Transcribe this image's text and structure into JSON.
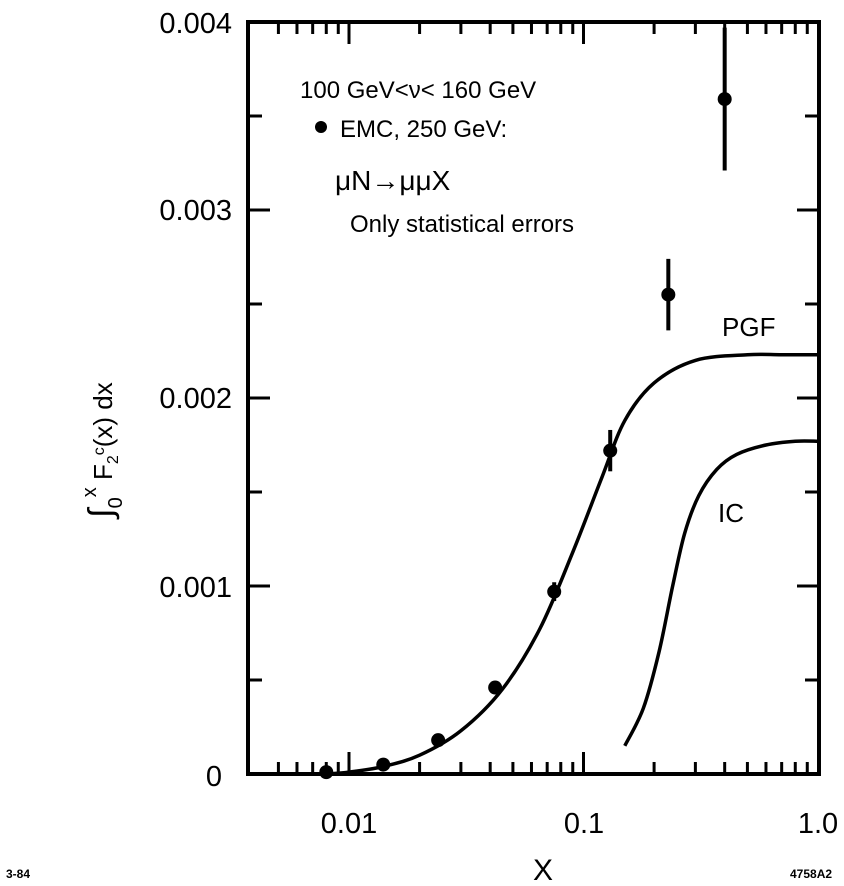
{
  "chart_data": {
    "type": "scatter",
    "title": "",
    "xlabel": "X",
    "ylabel": "∫₀ˣ F₂ᶜ(x) dx",
    "x_scale": "log",
    "xlim": [
      0.005,
      1.0
    ],
    "ylim": [
      0,
      0.004
    ],
    "x_tick_labels": [
      "0.01",
      "0.1",
      "1.0"
    ],
    "y_tick_labels": [
      "0",
      "0.001",
      "0.002",
      "0.003",
      "0.004"
    ],
    "grid": false,
    "annotations": {
      "line1": "100 GeV<ν< 160 GeV",
      "line2": "EMC, 250 GeV:",
      "line3": "μN→μμX",
      "line4": "Only statistical errors"
    },
    "series": [
      {
        "name": "EMC, 250 GeV",
        "style": "points-with-errors",
        "points": [
          {
            "x": 0.008,
            "y": 1e-05,
            "err": 0
          },
          {
            "x": 0.014,
            "y": 5e-05,
            "err": 0
          },
          {
            "x": 0.024,
            "y": 0.00018,
            "err": 0
          },
          {
            "x": 0.042,
            "y": 0.00046,
            "err": 3e-05
          },
          {
            "x": 0.075,
            "y": 0.00097,
            "err": 5e-05
          },
          {
            "x": 0.13,
            "y": 0.00172,
            "err": 0.00011
          },
          {
            "x": 0.23,
            "y": 0.00255,
            "err": 0.00019
          },
          {
            "x": 0.4,
            "y": 0.00359,
            "err": 0.00038
          }
        ]
      },
      {
        "name": "PGF",
        "style": "line",
        "points": [
          [
            0.008,
            0.0
          ],
          [
            0.01,
            1e-05
          ],
          [
            0.014,
            4e-05
          ],
          [
            0.02,
            0.0001
          ],
          [
            0.03,
            0.00023
          ],
          [
            0.045,
            0.00045
          ],
          [
            0.065,
            0.00077
          ],
          [
            0.09,
            0.00118
          ],
          [
            0.12,
            0.00158
          ],
          [
            0.15,
            0.00188
          ],
          [
            0.2,
            0.00208
          ],
          [
            0.3,
            0.0022
          ],
          [
            0.5,
            0.00223
          ],
          [
            0.7,
            0.00223
          ],
          [
            1.0,
            0.00223
          ]
        ]
      },
      {
        "name": "IC",
        "style": "line",
        "points": [
          [
            0.15,
            0.00015
          ],
          [
            0.18,
            0.00035
          ],
          [
            0.21,
            0.00065
          ],
          [
            0.24,
            0.001
          ],
          [
            0.27,
            0.00128
          ],
          [
            0.31,
            0.00148
          ],
          [
            0.37,
            0.00162
          ],
          [
            0.45,
            0.0017
          ],
          [
            0.6,
            0.00175
          ],
          [
            0.8,
            0.00177
          ],
          [
            1.0,
            0.00177
          ]
        ]
      }
    ]
  },
  "corner_left": "3-84",
  "corner_right": "4758A2"
}
